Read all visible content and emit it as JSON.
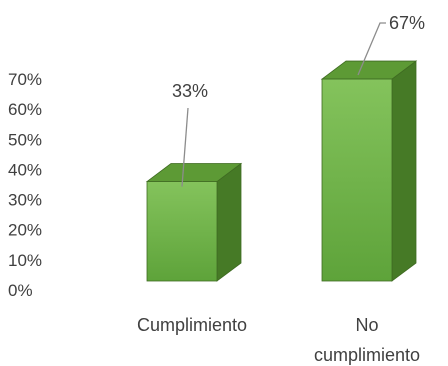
{
  "chart_data": {
    "type": "bar",
    "categories": [
      [
        "Cumplimiento"
      ],
      [
        "No",
        "cumplimiento"
      ]
    ],
    "values": [
      33,
      67
    ],
    "data_labels": [
      "33%",
      "67%"
    ],
    "y_ticks": [
      "0%",
      "10%",
      "20%",
      "30%",
      "40%",
      "50%",
      "60%",
      "70%"
    ],
    "ylim": [
      0,
      70
    ],
    "grid": false,
    "legend": "none",
    "style": "3d-column",
    "colors": {
      "front_top": "#84c35c",
      "front_bottom": "#5ea33a",
      "side": "#467a26",
      "top": "#5d9a35",
      "edge": "#3f6b22",
      "text": "#404040",
      "leader": "#8c8c8c"
    }
  }
}
